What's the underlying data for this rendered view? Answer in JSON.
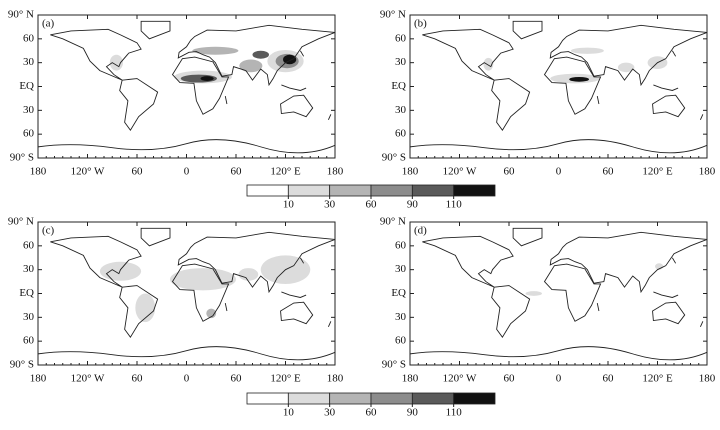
{
  "panels": [
    {
      "label": "(a)"
    },
    {
      "label": "(b)"
    },
    {
      "label": "(c)"
    },
    {
      "label": "(d)"
    }
  ],
  "y_axis_labels": [
    "90° N",
    "60",
    "30",
    "EQ",
    "30",
    "60",
    "90° S"
  ],
  "x_axis_labels": [
    "180",
    "120° W",
    "60",
    "0",
    "60",
    "120° E",
    "180"
  ],
  "colorbar": {
    "levels": [
      10,
      30,
      60,
      90,
      110
    ],
    "colors": [
      "#ffffff",
      "#dcdcdc",
      "#b4b4b4",
      "#8c8c8c",
      "#5a5a5a",
      "#111111"
    ]
  }
}
